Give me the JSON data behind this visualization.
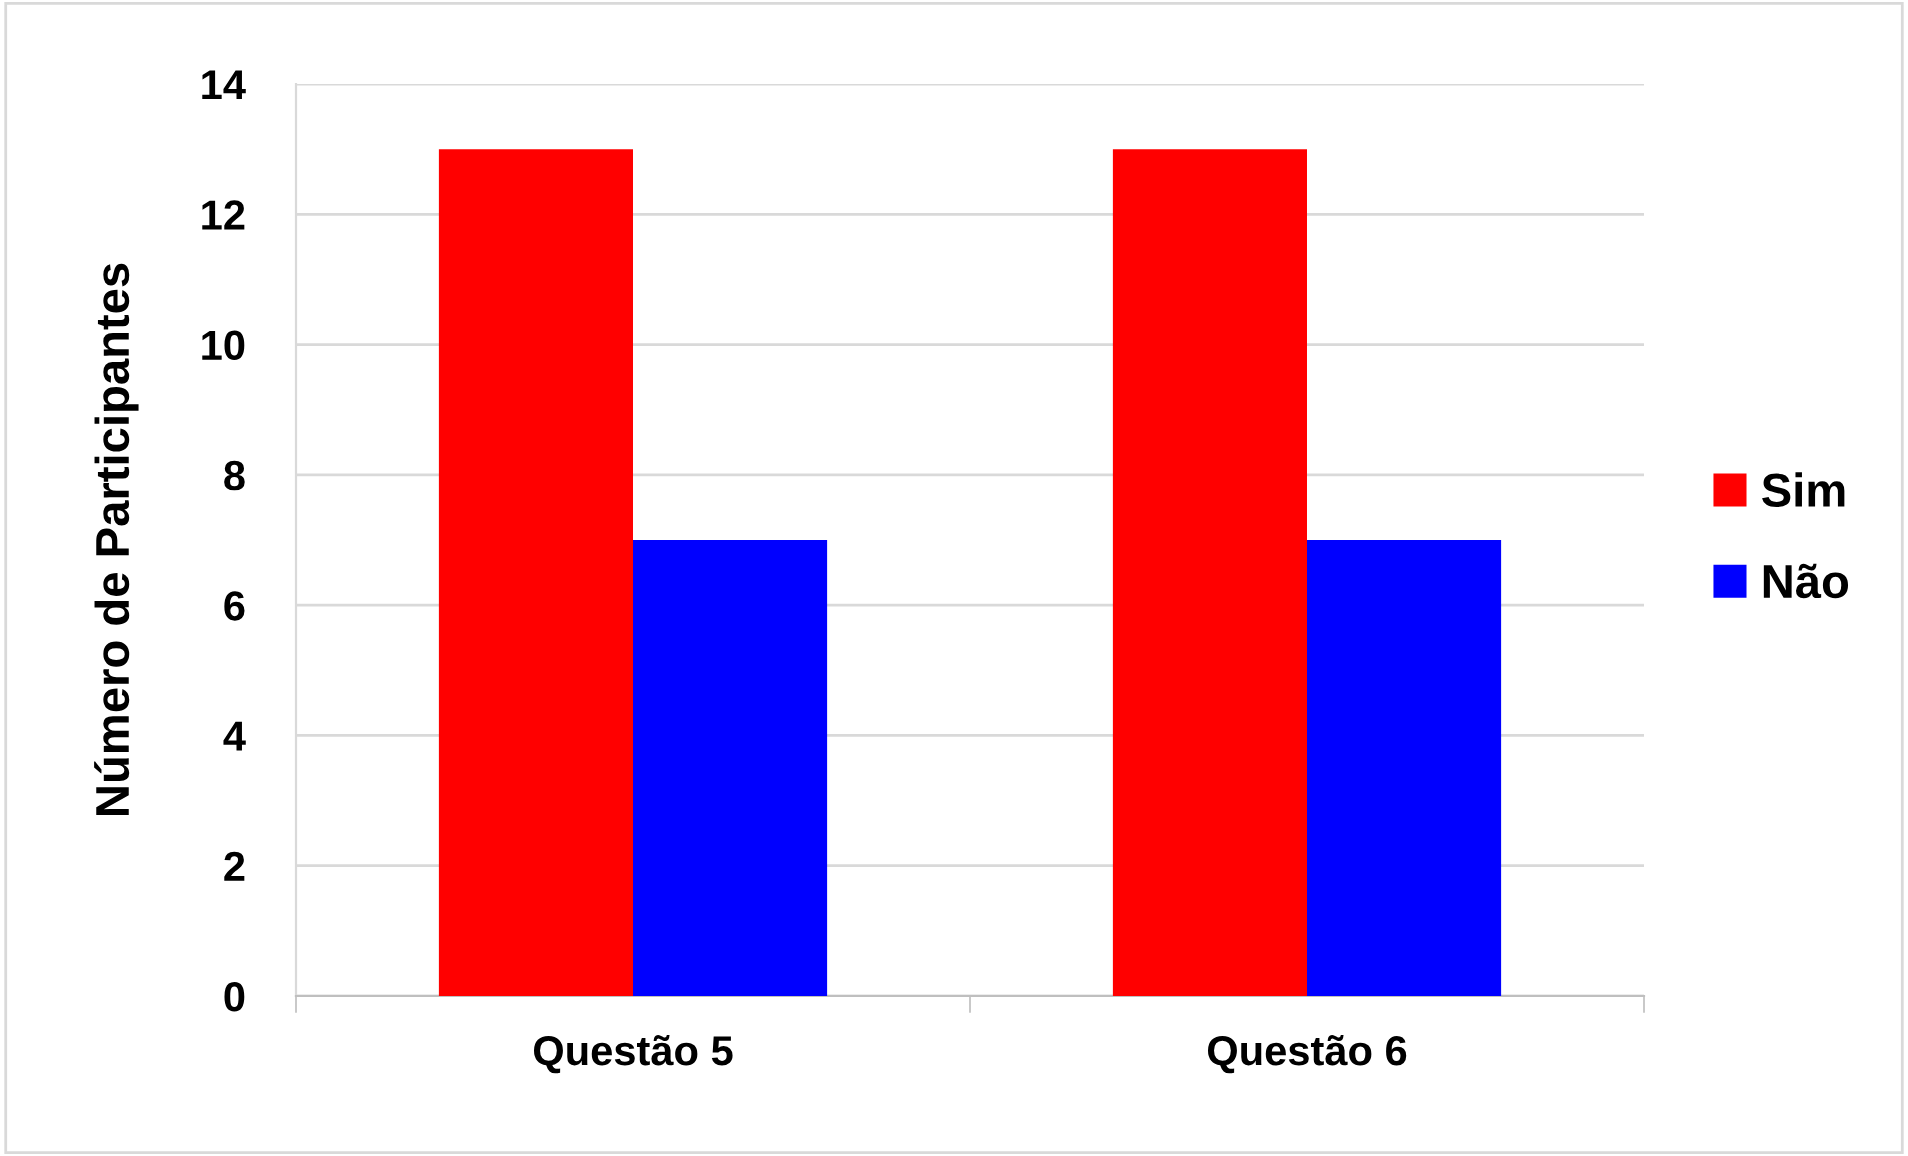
{
  "chart_data": {
    "type": "bar",
    "ylabel": "Número de Participantes",
    "categories": [
      "Questão 5",
      "Questão 6"
    ],
    "series": [
      {
        "name": "Sim",
        "color": "#ff0000",
        "values": [
          13,
          13
        ]
      },
      {
        "name": "Não",
        "color": "#0000ff",
        "values": [
          7,
          7
        ]
      }
    ],
    "ylim": [
      0,
      14
    ],
    "yticks": [
      0,
      2,
      4,
      6,
      8,
      10,
      12,
      14
    ],
    "grid": "y",
    "legend": "right"
  }
}
